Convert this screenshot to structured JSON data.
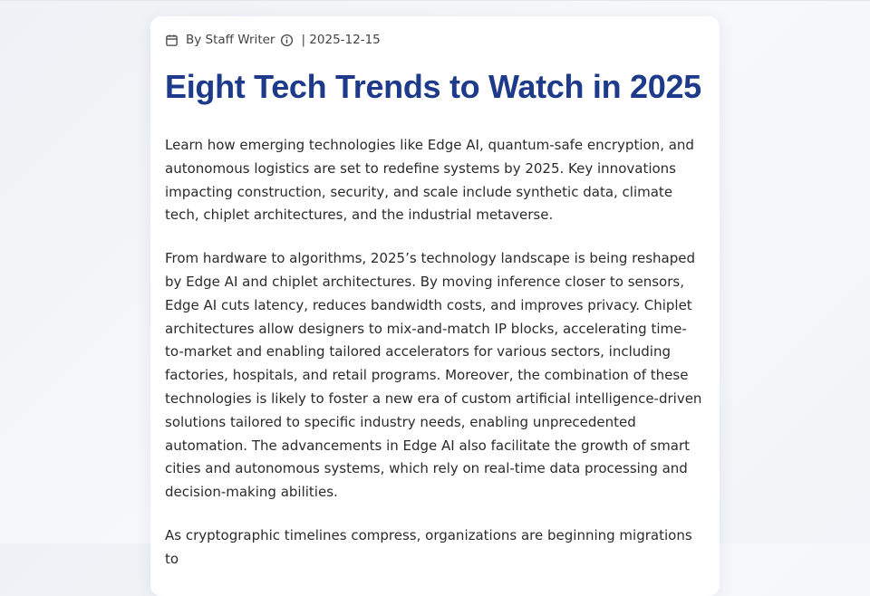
{
  "article": {
    "meta": {
      "author": "By Staff Writer",
      "date": "| 2025-12-15"
    },
    "title": "Eight Tech Trends to Watch in 2025",
    "paragraphs": [
      "Learn how emerging technologies like Edge AI, quantum-safe encryption, and autonomous logistics are set to redefine systems by 2025. Key innovations impacting construction, security, and scale include synthetic data, climate tech, chiplet architectures, and the industrial metaverse.",
      "From hardware to algorithms, 2025’s technology landscape is being reshaped by Edge AI and chiplet architectures. By moving inference closer to sensors, Edge AI cuts latency, reduces bandwidth costs, and improves privacy. Chiplet architectures allow designers to mix-and-match IP blocks, accelerating time-to-market and enabling tailored accelerators for various sectors, including factories, hospitals, and retail programs. Moreover, the combination of these technologies is likely to foster a new era of custom artificial intelligence-driven solutions tailored to specific industry needs, enabling unprecedented automation. The advancements in Edge AI also facilitate the growth of smart cities and autonomous systems, which rely on real-time data processing and decision-making abilities.",
      "As cryptographic timelines compress, organizations are beginning migrations to"
    ]
  }
}
